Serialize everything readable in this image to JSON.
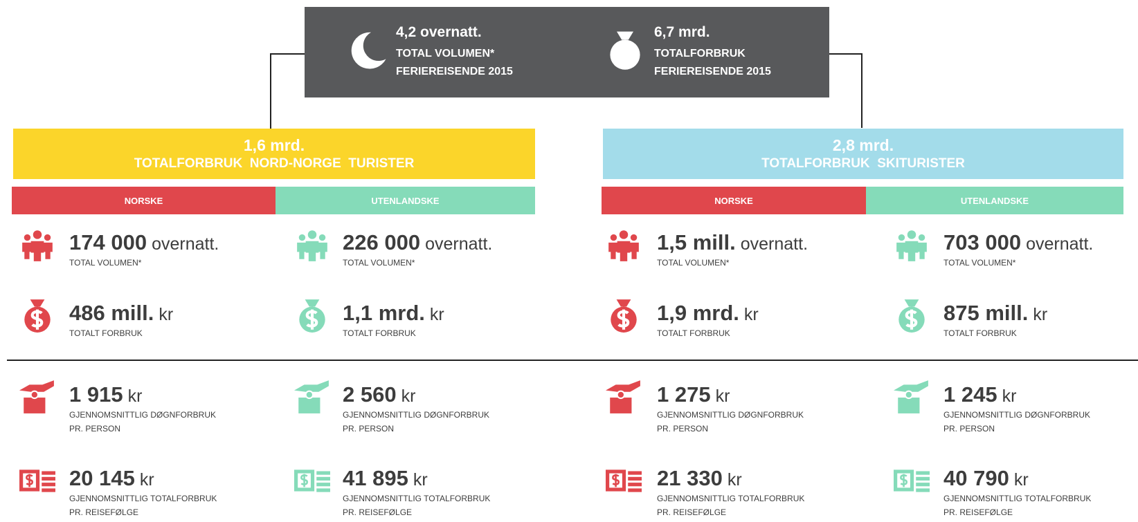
{
  "header": {
    "items": [
      {
        "value": "4,2 overnatt.",
        "line1": "TOTAL VOLUMEN*",
        "line2": "FERIEREISENDE 2015"
      },
      {
        "value": "6,7 mrd.",
        "line1": "TOTALFORBRUK",
        "line2": "FERIEREISENDE 2015"
      }
    ]
  },
  "sections": [
    {
      "value": "1,6 mrd.",
      "title": "TOTALFORBRUK  NORD-NORGE  TURISTER",
      "groups": [
        {
          "label": "NORSKE",
          "stats": [
            {
              "value": "174 000",
              "unit": "overnatt.",
              "lines": [
                "TOTAL VOLUMEN*"
              ]
            },
            {
              "value": "486 mill.",
              "unit": "kr",
              "lines": [
                "TOTALT FORBRUK"
              ]
            },
            {
              "value": "1 915",
              "unit": "kr",
              "lines": [
                "GJENNOMSNITTLIG DØGNFORBRUK",
                "PR. PERSON"
              ]
            },
            {
              "value": "20 145",
              "unit": "kr",
              "lines": [
                "GJENNOMSNITTLIG TOTALFORBRUK",
                "PR. REISEFØLGE"
              ]
            }
          ]
        },
        {
          "label": "UTENLANDSKE",
          "stats": [
            {
              "value": "226 000",
              "unit": "overnatt.",
              "lines": [
                "TOTAL VOLUMEN*"
              ]
            },
            {
              "value": "1,1 mrd.",
              "unit": "kr",
              "lines": [
                "TOTALT FORBRUK"
              ]
            },
            {
              "value": "2 560",
              "unit": "kr",
              "lines": [
                "GJENNOMSNITTLIG DØGNFORBRUK",
                "PR. PERSON"
              ]
            },
            {
              "value": "41 895",
              "unit": "kr",
              "lines": [
                "GJENNOMSNITTLIG TOTALFORBRUK",
                "PR. REISEFØLGE"
              ]
            }
          ]
        }
      ]
    },
    {
      "value": "2,8 mrd.",
      "title": "TOTALFORBRUK  SKITURISTER",
      "groups": [
        {
          "label": "NORSKE",
          "stats": [
            {
              "value": "1,5 mill.",
              "unit": "overnatt.",
              "lines": [
                "TOTAL VOLUMEN*"
              ]
            },
            {
              "value": "1,9 mrd.",
              "unit": "kr",
              "lines": [
                "TOTALT FORBRUK"
              ]
            },
            {
              "value": "1 275",
              "unit": "kr",
              "lines": [
                "GJENNOMSNITTLIG DØGNFORBRUK",
                "PR. PERSON"
              ]
            },
            {
              "value": "21 330",
              "unit": "kr",
              "lines": [
                "GJENNOMSNITTLIG TOTALFORBRUK",
                "PR. REISEFØLGE"
              ]
            }
          ]
        },
        {
          "label": "UTENLANDSKE",
          "stats": [
            {
              "value": "703 000",
              "unit": "overnatt.",
              "lines": [
                "TOTAL VOLUMEN*"
              ]
            },
            {
              "value": "875 mill.",
              "unit": "kr",
              "lines": [
                "TOTALT FORBRUK"
              ]
            },
            {
              "value": "1 245",
              "unit": "kr",
              "lines": [
                "GJENNOMSNITTLIG DØGNFORBRUK",
                "PR. PERSON"
              ]
            },
            {
              "value": "40 790",
              "unit": "kr",
              "lines": [
                "GJENNOMSNITTLIG TOTALFORBRUK",
                "PR. REISEFØLGE"
              ]
            }
          ]
        }
      ]
    }
  ]
}
